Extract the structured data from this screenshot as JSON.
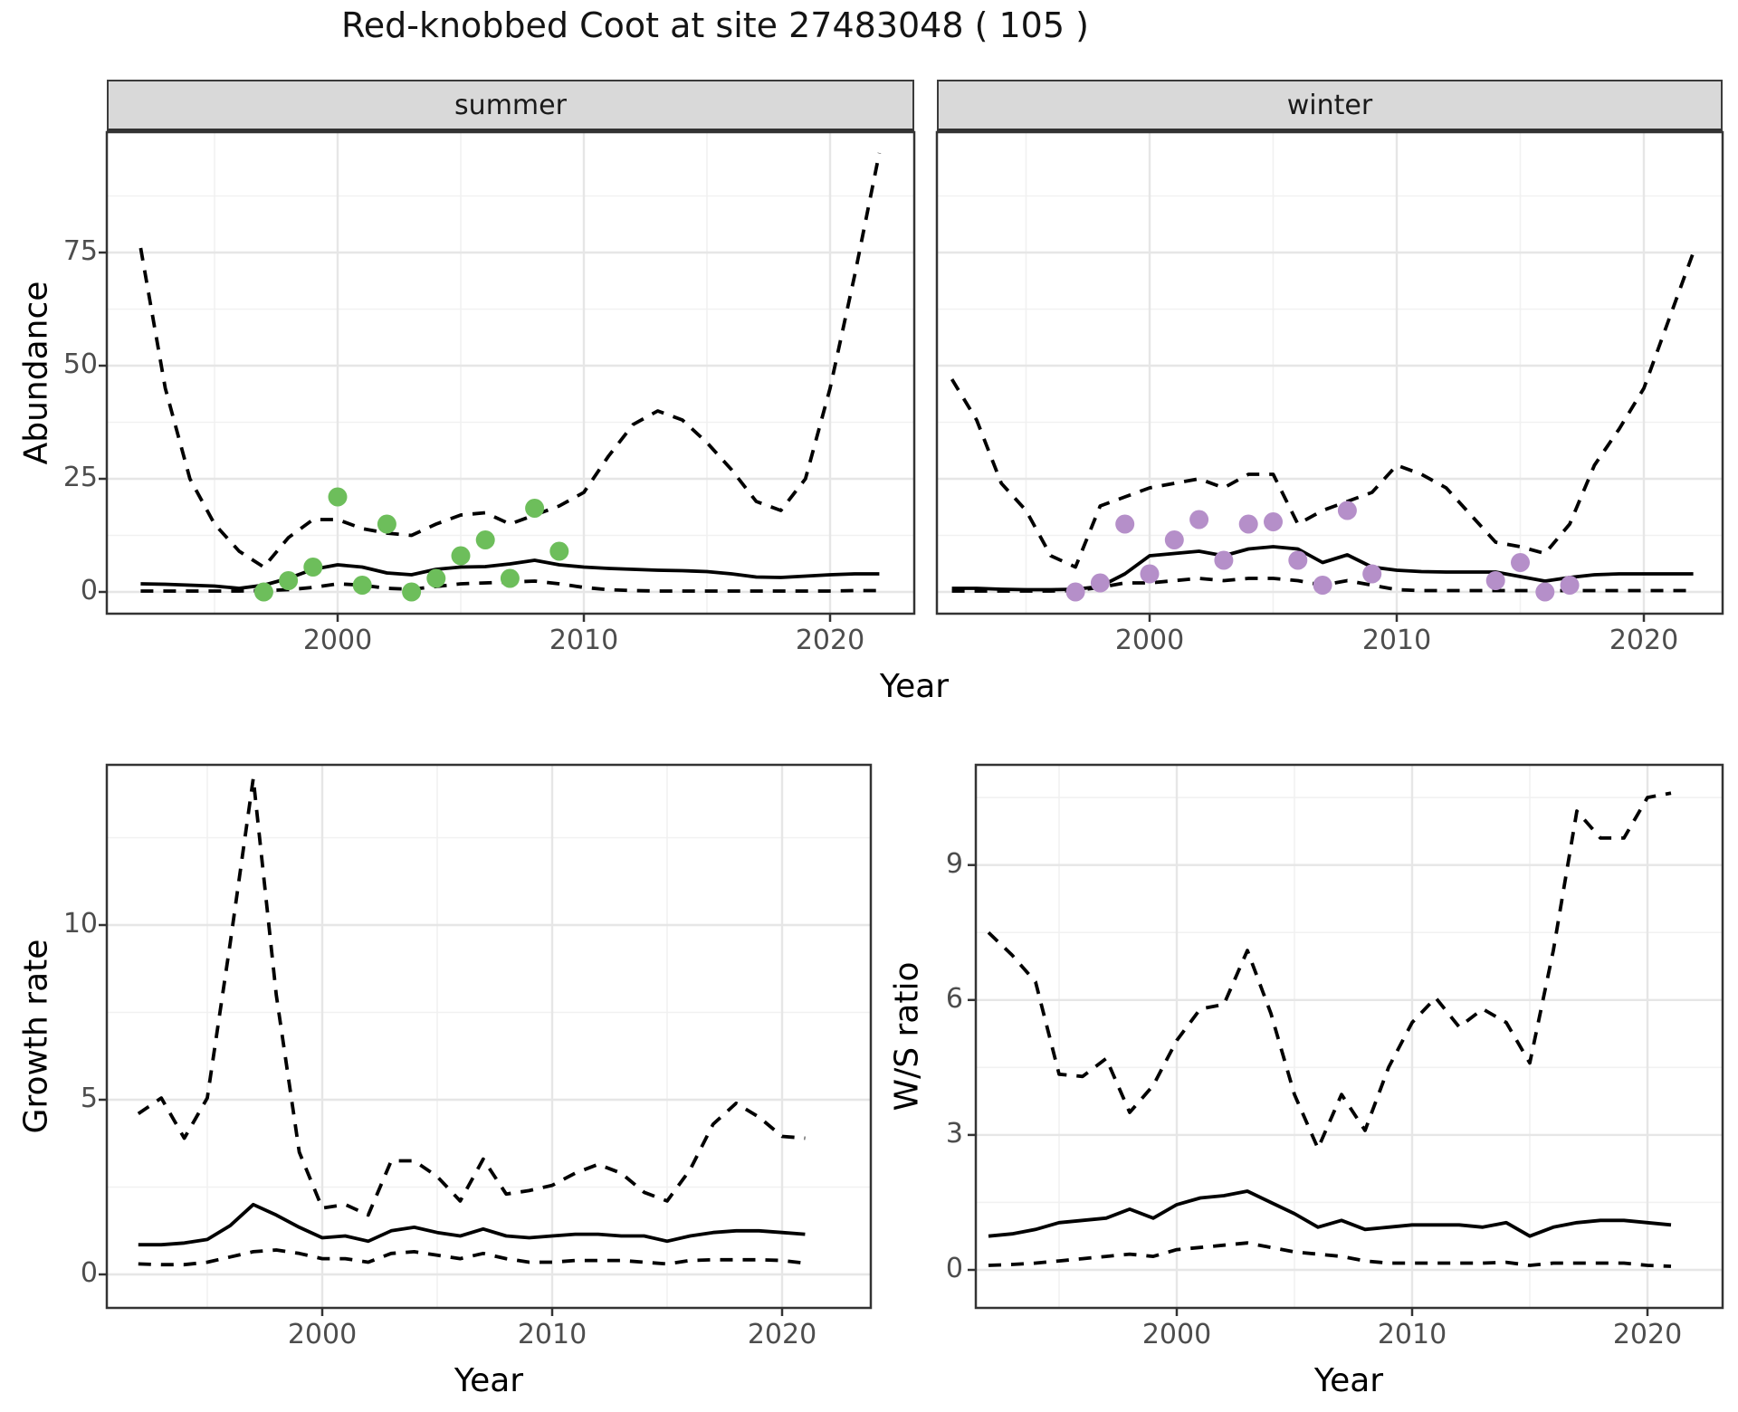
{
  "title": "Red-knobbed Coot at site 27483048 ( 105 )",
  "facets": {
    "summer": "summer",
    "winter": "winter"
  },
  "axes": {
    "x_label": "Year",
    "abundance_label": "Abundance",
    "growth_label": "Growth rate",
    "ws_label": "W/S ratio"
  },
  "colors": {
    "line": "#000000",
    "summer_points": "#6DBE5B",
    "winter_points": "#B58FC9",
    "strip_bg": "#D9D9D9",
    "panel_border": "#333333",
    "grid_major": "#E6E6E6",
    "grid_minor": "#F1F1F1",
    "tick_text": "#4D4D4D"
  },
  "chart_data": [
    {
      "id": "abundance_summer",
      "type": "line",
      "facet": "summer",
      "title": "summer",
      "xlabel": "Year",
      "ylabel": "Abundance",
      "xticks": [
        2000,
        2010,
        2020
      ],
      "yticks": [
        0,
        25,
        50,
        75
      ],
      "ylim": [
        -2,
        102
      ],
      "xlim": [
        1990.5,
        2023.5
      ],
      "legend": "none",
      "x": [
        1992,
        1993,
        1994,
        1995,
        1996,
        1997,
        1998,
        1999,
        2000,
        2001,
        2002,
        2003,
        2004,
        2005,
        2006,
        2007,
        2008,
        2009,
        2010,
        2011,
        2012,
        2013,
        2014,
        2015,
        2016,
        2017,
        2018,
        2019,
        2020,
        2021,
        2022
      ],
      "series": [
        {
          "name": "median",
          "style": "solid",
          "values": [
            1.8,
            1.7,
            1.5,
            1.3,
            0.8,
            1.5,
            3.0,
            5.0,
            6.0,
            5.5,
            4.2,
            3.8,
            5.0,
            5.5,
            5.6,
            6.2,
            7.0,
            6.0,
            5.5,
            5.2,
            5.0,
            4.8,
            4.7,
            4.5,
            4.0,
            3.3,
            3.2,
            3.5,
            3.8,
            4.0,
            4.0
          ]
        },
        {
          "name": "upper_ci",
          "style": "dashed",
          "values": [
            76,
            45,
            25,
            15,
            9,
            5.5,
            12,
            16,
            16,
            14,
            13,
            12.5,
            15,
            17,
            17.5,
            15,
            17,
            19,
            22,
            30,
            37,
            40,
            38,
            33,
            27,
            20,
            18,
            25,
            45,
            70,
            97
          ]
        },
        {
          "name": "lower_ci",
          "style": "dashed",
          "values": [
            0.2,
            0.2,
            0.2,
            0.2,
            0.2,
            0.3,
            0.5,
            1.0,
            1.8,
            1.5,
            0.8,
            0.6,
            1.2,
            1.8,
            2.0,
            2.2,
            2.4,
            1.8,
            1.0,
            0.5,
            0.3,
            0.2,
            0.2,
            0.2,
            0.2,
            0.2,
            0.2,
            0.2,
            0.2,
            0.3,
            0.3
          ]
        }
      ],
      "points": {
        "name": "observed_counts",
        "color": "#6DBE5B",
        "x": [
          1997,
          1998,
          1999,
          2000,
          2001,
          2002,
          2003,
          2004,
          2005,
          2006,
          2007,
          2008,
          2009
        ],
        "y": [
          0,
          2.5,
          5.5,
          21,
          1.5,
          15,
          0,
          3,
          8,
          11.5,
          3,
          18.5,
          9
        ]
      }
    },
    {
      "id": "abundance_winter",
      "type": "line",
      "facet": "winter",
      "title": "winter",
      "xlabel": "Year",
      "ylabel": "Abundance",
      "xticks": [
        2000,
        2010,
        2020
      ],
      "yticks": [
        0,
        25,
        50,
        75
      ],
      "ylim": [
        -2,
        102
      ],
      "xlim": [
        1990.5,
        2023.5
      ],
      "legend": "none",
      "x": [
        1992,
        1993,
        1994,
        1995,
        1996,
        1997,
        1998,
        1999,
        2000,
        2001,
        2002,
        2003,
        2004,
        2005,
        2006,
        2007,
        2008,
        2009,
        2010,
        2011,
        2012,
        2013,
        2014,
        2015,
        2016,
        2017,
        2018,
        2019,
        2020,
        2021,
        2022
      ],
      "series": [
        {
          "name": "median",
          "style": "solid",
          "values": [
            0.8,
            0.8,
            0.6,
            0.5,
            0.5,
            0.6,
            1.2,
            4.0,
            8.0,
            8.5,
            9.0,
            8.0,
            9.5,
            10.0,
            9.5,
            6.5,
            8.2,
            5.5,
            4.8,
            4.5,
            4.4,
            4.4,
            4.4,
            3.4,
            2.4,
            3.2,
            3.8,
            4.0,
            4.0,
            4.0,
            4.0
          ]
        },
        {
          "name": "upper_ci",
          "style": "dashed",
          "values": [
            47,
            38,
            24,
            18,
            8,
            5.5,
            19,
            21,
            23,
            24,
            25,
            23,
            26,
            26,
            15,
            18,
            20,
            22,
            28,
            26,
            23,
            17,
            11,
            10,
            8.5,
            15,
            28,
            36,
            45,
            60,
            75
          ]
        },
        {
          "name": "lower_ci",
          "style": "dashed",
          "values": [
            0.2,
            0.2,
            0.2,
            0.2,
            0.2,
            0.3,
            1.0,
            2.0,
            2.0,
            2.5,
            3.0,
            2.5,
            3.0,
            3.0,
            2.5,
            1.5,
            2.5,
            1.5,
            0.5,
            0.3,
            0.3,
            0.3,
            0.3,
            0.3,
            0.3,
            0.3,
            0.3,
            0.3,
            0.3,
            0.3,
            0.3
          ]
        }
      ],
      "points": {
        "name": "observed_counts",
        "color": "#B58FC9",
        "x": [
          1997,
          1998,
          1999,
          2000,
          2001,
          2002,
          2003,
          2004,
          2005,
          2006,
          2007,
          2008,
          2009,
          2014,
          2015,
          2016,
          2017
        ],
        "y": [
          0,
          2,
          15,
          4,
          11.5,
          16,
          7,
          15,
          15.5,
          7,
          1.5,
          18,
          4,
          2.5,
          6.5,
          0,
          1.5
        ]
      }
    },
    {
      "id": "growth_rate",
      "type": "line",
      "facet": null,
      "title": "",
      "xlabel": "Year",
      "ylabel": "Growth rate",
      "xticks": [
        2000,
        2010,
        2020
      ],
      "yticks": [
        0,
        5,
        10
      ],
      "ylim": [
        -1,
        14.6
      ],
      "xlim": [
        1990.5,
        2023.5
      ],
      "legend": "none",
      "x": [
        1992,
        1993,
        1994,
        1995,
        1996,
        1997,
        1998,
        1999,
        2000,
        2001,
        2002,
        2003,
        2004,
        2005,
        2006,
        2007,
        2008,
        2009,
        2010,
        2011,
        2012,
        2013,
        2014,
        2015,
        2016,
        2017,
        2018,
        2019,
        2020,
        2021
      ],
      "series": [
        {
          "name": "median",
          "style": "solid",
          "values": [
            0.85,
            0.85,
            0.9,
            1.0,
            1.4,
            2.0,
            1.7,
            1.35,
            1.05,
            1.1,
            0.95,
            1.25,
            1.35,
            1.2,
            1.1,
            1.3,
            1.1,
            1.05,
            1.1,
            1.15,
            1.15,
            1.1,
            1.1,
            0.95,
            1.1,
            1.2,
            1.25,
            1.25,
            1.2,
            1.15
          ]
        },
        {
          "name": "upper_ci",
          "style": "dashed",
          "values": [
            4.6,
            5.05,
            3.9,
            5.05,
            9.5,
            14.2,
            8.0,
            3.5,
            1.9,
            2.0,
            1.7,
            3.25,
            3.25,
            2.8,
            2.1,
            3.3,
            2.3,
            2.4,
            2.55,
            2.9,
            3.15,
            2.9,
            2.35,
            2.1,
            3.0,
            4.3,
            4.9,
            4.5,
            3.95,
            3.9
          ]
        },
        {
          "name": "lower_ci",
          "style": "dashed",
          "values": [
            0.3,
            0.28,
            0.28,
            0.35,
            0.5,
            0.65,
            0.7,
            0.6,
            0.45,
            0.45,
            0.35,
            0.6,
            0.65,
            0.55,
            0.45,
            0.6,
            0.45,
            0.35,
            0.35,
            0.4,
            0.4,
            0.4,
            0.35,
            0.3,
            0.4,
            0.42,
            0.42,
            0.42,
            0.4,
            0.32
          ]
        }
      ],
      "points": null
    },
    {
      "id": "ws_ratio",
      "type": "line",
      "facet": null,
      "title": "",
      "xlabel": "Year",
      "ylabel": "W/S ratio",
      "xticks": [
        2000,
        2010,
        2020
      ],
      "yticks": [
        0,
        3,
        6,
        9
      ],
      "ylim": [
        -0.6,
        11.2
      ],
      "xlim": [
        1990.5,
        2023.5
      ],
      "legend": "none",
      "x": [
        1992,
        1993,
        1994,
        1995,
        1996,
        1997,
        1998,
        1999,
        2000,
        2001,
        2002,
        2003,
        2004,
        2005,
        2006,
        2007,
        2008,
        2009,
        2010,
        2011,
        2012,
        2013,
        2014,
        2015,
        2016,
        2017,
        2018,
        2019,
        2020,
        2021
      ],
      "series": [
        {
          "name": "median",
          "style": "solid",
          "values": [
            0.75,
            0.8,
            0.9,
            1.05,
            1.1,
            1.15,
            1.35,
            1.15,
            1.45,
            1.6,
            1.65,
            1.75,
            1.5,
            1.25,
            0.95,
            1.1,
            0.9,
            0.95,
            1.0,
            1.0,
            1.0,
            0.95,
            1.05,
            0.75,
            0.95,
            1.05,
            1.1,
            1.1,
            1.05,
            1.0
          ]
        },
        {
          "name": "upper_ci",
          "style": "dashed",
          "values": [
            7.5,
            7.0,
            6.4,
            4.35,
            4.3,
            4.7,
            3.5,
            4.1,
            5.1,
            5.8,
            5.9,
            7.1,
            5.7,
            3.9,
            2.7,
            3.9,
            3.1,
            4.5,
            5.5,
            6.05,
            5.4,
            5.8,
            5.5,
            4.6,
            7.1,
            10.2,
            9.6,
            9.6,
            10.5,
            10.6
          ]
        },
        {
          "name": "lower_ci",
          "style": "dashed",
          "values": [
            0.1,
            0.12,
            0.15,
            0.2,
            0.25,
            0.3,
            0.35,
            0.3,
            0.45,
            0.5,
            0.55,
            0.6,
            0.5,
            0.4,
            0.35,
            0.3,
            0.2,
            0.15,
            0.15,
            0.15,
            0.15,
            0.15,
            0.17,
            0.1,
            0.15,
            0.15,
            0.15,
            0.15,
            0.1,
            0.08
          ]
        }
      ],
      "points": null
    }
  ]
}
